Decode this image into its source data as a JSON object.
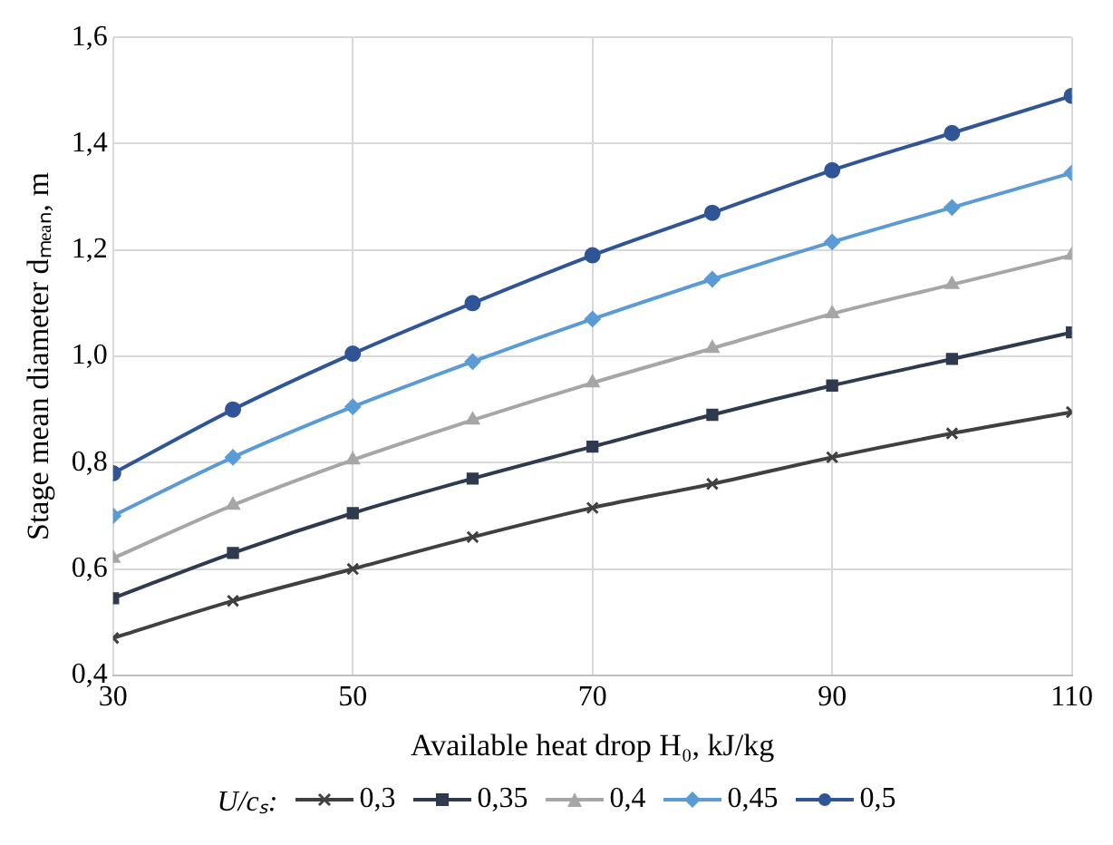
{
  "chart_data": {
    "type": "line",
    "xlabel": "Available heat drop H₀, kJ/kg",
    "ylabel": "Stage mean diameter dₘₑₐₙ, m",
    "legend_title": "U/cₛ:",
    "x": [
      30,
      40,
      50,
      60,
      70,
      80,
      90,
      100,
      110
    ],
    "xlim": [
      30,
      110
    ],
    "xticks": [
      30,
      50,
      70,
      90,
      110
    ],
    "ylim": [
      0.4,
      1.6
    ],
    "yticks": [
      {
        "value": 0.4,
        "label": "0,4"
      },
      {
        "value": 0.6,
        "label": "0,6"
      },
      {
        "value": 0.8,
        "label": "0,8"
      },
      {
        "value": 1.0,
        "label": "1,0"
      },
      {
        "value": 1.2,
        "label": "1,2"
      },
      {
        "value": 1.4,
        "label": "1,4"
      },
      {
        "value": 1.6,
        "label": "1,6"
      }
    ],
    "grid": true,
    "legend": "bottom",
    "line_style": "solid",
    "series": [
      {
        "name": "0,3",
        "color": "#404040",
        "marker": "cross",
        "values": [
          0.47,
          0.54,
          0.6,
          0.66,
          0.715,
          0.76,
          0.81,
          0.855,
          0.895
        ]
      },
      {
        "name": "0,35",
        "color": "#2f3a4f",
        "marker": "square",
        "values": [
          0.545,
          0.63,
          0.705,
          0.77,
          0.83,
          0.89,
          0.945,
          0.995,
          1.045
        ]
      },
      {
        "name": "0,4",
        "color": "#a6a6a6",
        "marker": "triangle",
        "values": [
          0.62,
          0.72,
          0.805,
          0.88,
          0.95,
          1.015,
          1.08,
          1.135,
          1.19
        ]
      },
      {
        "name": "0,45",
        "color": "#5b9bd5",
        "marker": "diamond",
        "values": [
          0.7,
          0.81,
          0.905,
          0.99,
          1.07,
          1.145,
          1.215,
          1.28,
          1.345
        ]
      },
      {
        "name": "0,5",
        "color": "#2f5597",
        "marker": "circle",
        "values": [
          0.78,
          0.9,
          1.005,
          1.1,
          1.19,
          1.27,
          1.35,
          1.42,
          1.49
        ]
      }
    ]
  }
}
